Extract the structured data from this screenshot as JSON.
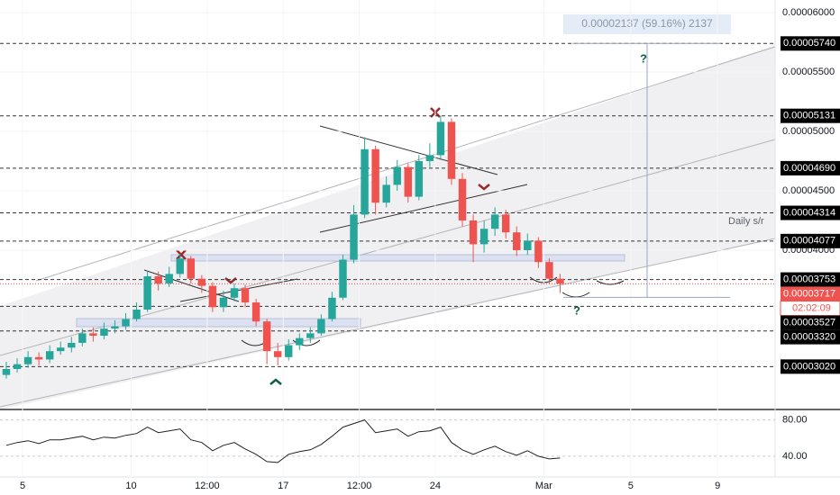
{
  "chart_data": {
    "type": "candlestick",
    "up_color": "#26a69a",
    "down_color": "#ef5350",
    "x": [
      4.25,
      4.75,
      5.25,
      5.75,
      6.25,
      6.75,
      7.25,
      7.75,
      8.25,
      8.75,
      9.25,
      9.75,
      10.25,
      10.75,
      11.25,
      11.75,
      12.25,
      12.75,
      13.25,
      13.75,
      14.25,
      14.75,
      15.25,
      15.75,
      16.25,
      16.75,
      17.25,
      17.75,
      18.25,
      18.75,
      19.25,
      19.75,
      20.25,
      20.75,
      21.25,
      21.75,
      22.25,
      22.75,
      23.25,
      23.75,
      24.25,
      24.75,
      25.25,
      25.75,
      26.25,
      26.75,
      27.25,
      27.75,
      28.25,
      28.75,
      29.25,
      29.75
    ],
    "open": [
      2.95e-05,
      3e-05,
      3.04e-05,
      3.1e-05,
      3.08e-05,
      3.15e-05,
      3.18e-05,
      3.22e-05,
      3.3e-05,
      3.28e-05,
      3.34e-05,
      3.36e-05,
      3.42e-05,
      3.5e-05,
      3.78e-05,
      3.72e-05,
      3.8e-05,
      3.93e-05,
      3.76e-05,
      3.7e-05,
      3.52e-05,
      3.6e-05,
      3.68e-05,
      3.56e-05,
      3.4e-05,
      3.15e-05,
      3.1e-05,
      3.2e-05,
      3.26e-05,
      3.3e-05,
      3.42e-05,
      3.6e-05,
      3.92e-05,
      4.3e-05,
      4.85e-05,
      4.4e-05,
      4.55e-05,
      4.7e-05,
      4.45e-05,
      4.75e-05,
      4.8e-05,
      5.08e-05,
      4.6e-05,
      4.25e-05,
      4.05e-05,
      4.18e-05,
      4.3e-05,
      4.15e-05,
      4e-05,
      4.08e-05,
      3.9e-05,
      3.76e-05
    ],
    "high": [
      3.06e-05,
      3.09e-05,
      3.15e-05,
      3.14e-05,
      3.2e-05,
      3.23e-05,
      3.27e-05,
      3.34e-05,
      3.35e-05,
      3.39e-05,
      3.41e-05,
      3.47e-05,
      3.56e-05,
      3.83e-05,
      3.82e-05,
      3.86e-05,
      3.97e-05,
      3.95e-05,
      3.79e-05,
      3.73e-05,
      3.66e-05,
      3.72e-05,
      3.71e-05,
      3.59e-05,
      3.42e-05,
      3.22e-05,
      3.25e-05,
      3.3e-05,
      3.35e-05,
      3.46e-05,
      3.65e-05,
      3.96e-05,
      4.38e-05,
      4.95e-05,
      4.88e-05,
      4.62e-05,
      4.76e-05,
      4.73e-05,
      4.8e-05,
      4.9e-05,
      5.131e-05,
      5.11e-05,
      4.65e-05,
      4.3e-05,
      4.25e-05,
      4.36e-05,
      4.34e-05,
      4.2e-05,
      4.14e-05,
      4.11e-05,
      3.93e-05,
      3.8e-05
    ],
    "low": [
      2.92e-05,
      2.97e-05,
      3.01e-05,
      3.03e-05,
      3.05e-05,
      3.12e-05,
      3.14e-05,
      3.19e-05,
      3.23e-05,
      3.25e-05,
      3.3e-05,
      3.33e-05,
      3.4e-05,
      3.48e-05,
      3.66e-05,
      3.69e-05,
      3.77e-05,
      3.72e-05,
      3.64e-05,
      3.48e-05,
      3.48e-05,
      3.57e-05,
      3.52e-05,
      3.36e-05,
      3.04e-05,
      3.03e-05,
      3.07e-05,
      3.16e-05,
      3.22e-05,
      3.28e-05,
      3.4e-05,
      3.58e-05,
      3.89e-05,
      4.27e-05,
      4.3e-05,
      4.36e-05,
      4.5e-05,
      4.4e-05,
      4.42e-05,
      4.7e-05,
      4.76e-05,
      4.55e-05,
      4.2e-05,
      3.9e-05,
      3.98e-05,
      4.12e-05,
      4.1e-05,
      3.95e-05,
      3.96e-05,
      3.85e-05,
      3.72e-05,
      3.64e-05
    ],
    "close": [
      3e-05,
      3.04e-05,
      3.1e-05,
      3.08e-05,
      3.15e-05,
      3.18e-05,
      3.22e-05,
      3.3e-05,
      3.28e-05,
      3.34e-05,
      3.36e-05,
      3.42e-05,
      3.5e-05,
      3.78e-05,
      3.72e-05,
      3.8e-05,
      3.93e-05,
      3.76e-05,
      3.7e-05,
      3.52e-05,
      3.6e-05,
      3.68e-05,
      3.56e-05,
      3.4e-05,
      3.15e-05,
      3.1e-05,
      3.2e-05,
      3.26e-05,
      3.3e-05,
      3.42e-05,
      3.6e-05,
      3.92e-05,
      4.3e-05,
      4.85e-05,
      4.4e-05,
      4.55e-05,
      4.7e-05,
      4.45e-05,
      4.75e-05,
      4.8e-05,
      5.08e-05,
      4.6e-05,
      4.25e-05,
      4.05e-05,
      4.18e-05,
      4.3e-05,
      4.15e-05,
      4e-05,
      4.08e-05,
      3.9e-05,
      3.76e-05,
      3.717e-05
    ],
    "xlim": [
      3.96,
      39.65
    ],
    "xticks": [
      {
        "value": 5,
        "label": "5"
      },
      10,
      {
        "value": 13.5,
        "label": "12:00"
      },
      17,
      {
        "value": 20.5,
        "label": "12:00"
      },
      24,
      {
        "value": 29,
        "label": "Mar"
      },
      {
        "value": 33,
        "label": "5"
      },
      {
        "value": 37,
        "label": "9"
      }
    ],
    "ylim": [
      2.659e-05,
      6.106e-05
    ],
    "yticks": [
      {
        "value": 6e-05,
        "label": "0.00006000"
      },
      {
        "value": 5.5e-05,
        "label": "0.00005500"
      },
      {
        "value": 5e-05,
        "label": "0.00005000"
      },
      {
        "value": 4.5e-05,
        "label": "0.00004500"
      },
      {
        "value": 4e-05,
        "label": "0.00004000"
      }
    ],
    "levels": [
      {
        "value": 5.74e-05,
        "label": "0.00005740"
      },
      {
        "value": 5.131e-05,
        "label": "0.00005131"
      },
      {
        "value": 4.69e-05,
        "label": "0.00004690"
      },
      {
        "value": 4.314e-05,
        "label": "0.00004314"
      },
      {
        "value": 4.077e-05,
        "label": "0.00004077"
      },
      {
        "value": 3.753e-05,
        "label": "0.00003753"
      },
      {
        "value": 3.527e-05,
        "label": "0.00003527"
      },
      {
        "value": 3.32e-05,
        "label": "0.00003320"
      },
      {
        "value": 3.02e-05,
        "label": "0.00003020"
      }
    ],
    "current_price": {
      "value": 3.717e-05,
      "label": "0.00003717"
    },
    "countdown": "02:02:09",
    "measure": {
      "label": "0.00002137 (59.16%) 2137",
      "top": 5.74e-05,
      "bottom": 3.603e-05
    },
    "annotations": [
      "?",
      "?",
      "Daily s/r"
    ],
    "rsi": {
      "values": [
        52,
        55,
        57,
        54,
        58,
        58,
        60,
        62,
        58,
        61,
        60,
        63,
        65,
        72,
        66,
        68,
        70,
        58,
        55,
        46,
        52,
        55,
        48,
        42,
        34,
        33,
        42,
        45,
        47,
        53,
        62,
        72,
        76,
        80,
        66,
        68,
        70,
        62,
        67,
        68,
        72,
        55,
        47,
        42,
        47,
        51,
        45,
        41,
        46,
        40,
        37,
        38
      ],
      "color": "#222222",
      "ylim": [
        19,
        90.5
      ],
      "yticks": [
        {
          "value": 80,
          "label": "80.00"
        },
        {
          "value": 40,
          "label": "40.00"
        }
      ]
    }
  }
}
